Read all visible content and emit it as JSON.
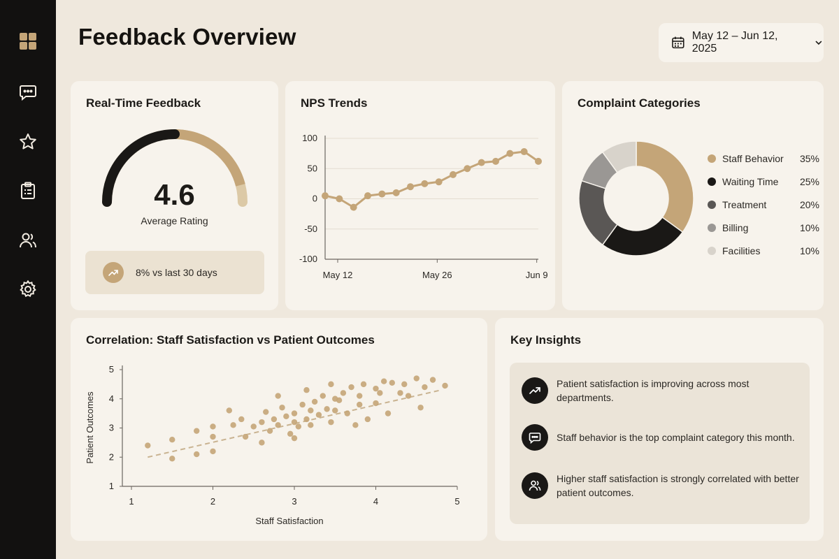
{
  "sidebar": {
    "items": [
      {
        "name": "dashboard",
        "icon": "grid-icon"
      },
      {
        "name": "feedback",
        "icon": "chat-icon"
      },
      {
        "name": "ratings",
        "icon": "star-icon"
      },
      {
        "name": "surveys",
        "icon": "clipboard-icon"
      },
      {
        "name": "staff",
        "icon": "users-icon"
      },
      {
        "name": "settings",
        "icon": "gear-icon"
      }
    ],
    "accent": "#c4a578"
  },
  "header": {
    "title": "Feedback Overview",
    "date_range": "May 12 – Jun 12, 2025"
  },
  "realtime": {
    "title": "Real-Time Feedback",
    "value": "4.6",
    "value_label": "Average Rating",
    "rating": 4.6,
    "rating_max": 5,
    "trend_text": "8% vs last 30 days"
  },
  "colors": {
    "dark": "#1a1816",
    "gold": "#c4a578",
    "light_gold": "#dcc9a6",
    "grey_dark": "#5a5755",
    "grey": "#9a9794",
    "grey_light": "#d8d3cb"
  },
  "nps": {
    "title": "NPS Trends"
  },
  "complaints": {
    "title": "Complaint Categories"
  },
  "correlation": {
    "title": "Correlation: Staff Satisfaction vs Patient Outcomes"
  },
  "insights": {
    "title": "Key Insights",
    "items": [
      {
        "icon": "trending-up-icon",
        "text": "Patient satisfaction is improving across most departments."
      },
      {
        "icon": "chat-icon",
        "text": "Staff behavior is the top complaint category this month."
      },
      {
        "icon": "users-icon",
        "text": "Higher staff satisfaction is strongly correlated with better patient outcomes."
      }
    ]
  },
  "chart_data": [
    {
      "id": "nps",
      "type": "line",
      "x": [
        "May 12",
        "May 14",
        "May 16",
        "May 18",
        "May 20",
        "May 22",
        "May 24",
        "May 26",
        "May 28",
        "May 30",
        "Jun 1",
        "Jun 3",
        "Jun 5",
        "Jun 7",
        "Jun 9",
        "Jun 11"
      ],
      "y": [
        5,
        0,
        -14,
        5,
        8,
        10,
        20,
        25,
        28,
        40,
        50,
        60,
        62,
        75,
        78,
        62
      ],
      "xticks": [
        "May 12",
        "May 26",
        "Jun 9"
      ],
      "yticks": [
        100,
        50,
        0,
        -50,
        -100
      ],
      "ylim": [
        -100,
        100
      ],
      "color": "#c4a578",
      "grid": true
    },
    {
      "id": "complaints",
      "type": "pie",
      "categories": [
        "Staff Behavior",
        "Waiting Time",
        "Treatment",
        "Billing",
        "Facilities"
      ],
      "values": [
        35,
        25,
        20,
        10,
        10
      ],
      "labels": [
        "35%",
        "25%",
        "20%",
        "10%",
        "10%"
      ],
      "colors": [
        "#c4a578",
        "#1a1816",
        "#5a5755",
        "#9a9794",
        "#d8d3cb"
      ],
      "donut": true,
      "legend": "right"
    },
    {
      "id": "correlation",
      "type": "scatter",
      "xlabel": "Staff Satisfaction",
      "ylabel": "Patient Outcomes",
      "xlim": [
        1,
        5
      ],
      "ylim": [
        1,
        5
      ],
      "xticks": [
        1,
        2,
        3,
        4,
        5
      ],
      "yticks": [
        1,
        2,
        3,
        4,
        5
      ],
      "trendline": {
        "x": [
          1.2,
          4.8
        ],
        "y": [
          2.0,
          4.3
        ]
      },
      "points": [
        [
          1.2,
          2.4
        ],
        [
          1.5,
          2.6
        ],
        [
          1.5,
          1.95
        ],
        [
          1.8,
          2.1
        ],
        [
          1.8,
          2.9
        ],
        [
          2.0,
          2.7
        ],
        [
          2.0,
          3.05
        ],
        [
          2.0,
          2.2
        ],
        [
          2.2,
          3.6
        ],
        [
          2.25,
          3.1
        ],
        [
          2.35,
          3.3
        ],
        [
          2.4,
          2.7
        ],
        [
          2.5,
          3.05
        ],
        [
          2.6,
          2.5
        ],
        [
          2.6,
          3.2
        ],
        [
          2.65,
          3.55
        ],
        [
          2.7,
          2.9
        ],
        [
          2.75,
          3.3
        ],
        [
          2.8,
          3.1
        ],
        [
          2.8,
          4.1
        ],
        [
          2.85,
          3.7
        ],
        [
          2.9,
          3.4
        ],
        [
          2.95,
          2.8
        ],
        [
          3.0,
          3.2
        ],
        [
          3.0,
          3.5
        ],
        [
          3.0,
          2.65
        ],
        [
          3.05,
          3.05
        ],
        [
          3.1,
          3.8
        ],
        [
          3.15,
          3.3
        ],
        [
          3.15,
          4.3
        ],
        [
          3.2,
          3.6
        ],
        [
          3.2,
          3.1
        ],
        [
          3.25,
          3.9
        ],
        [
          3.3,
          3.45
        ],
        [
          3.35,
          4.1
        ],
        [
          3.4,
          3.65
        ],
        [
          3.45,
          3.2
        ],
        [
          3.45,
          4.5
        ],
        [
          3.5,
          4.0
        ],
        [
          3.5,
          3.6
        ],
        [
          3.55,
          3.95
        ],
        [
          3.6,
          4.2
        ],
        [
          3.65,
          3.5
        ],
        [
          3.7,
          4.4
        ],
        [
          3.75,
          3.1
        ],
        [
          3.8,
          4.1
        ],
        [
          3.8,
          3.8
        ],
        [
          3.85,
          4.5
        ],
        [
          3.9,
          3.3
        ],
        [
          4.0,
          3.85
        ],
        [
          4.0,
          4.35
        ],
        [
          4.05,
          4.2
        ],
        [
          4.1,
          4.6
        ],
        [
          4.15,
          3.5
        ],
        [
          4.2,
          4.55
        ],
        [
          4.3,
          4.2
        ],
        [
          4.35,
          4.5
        ],
        [
          4.4,
          4.1
        ],
        [
          4.5,
          4.7
        ],
        [
          4.55,
          3.7
        ],
        [
          4.6,
          4.4
        ],
        [
          4.7,
          4.65
        ],
        [
          4.85,
          4.45
        ]
      ],
      "color": "#c4a578"
    }
  ]
}
